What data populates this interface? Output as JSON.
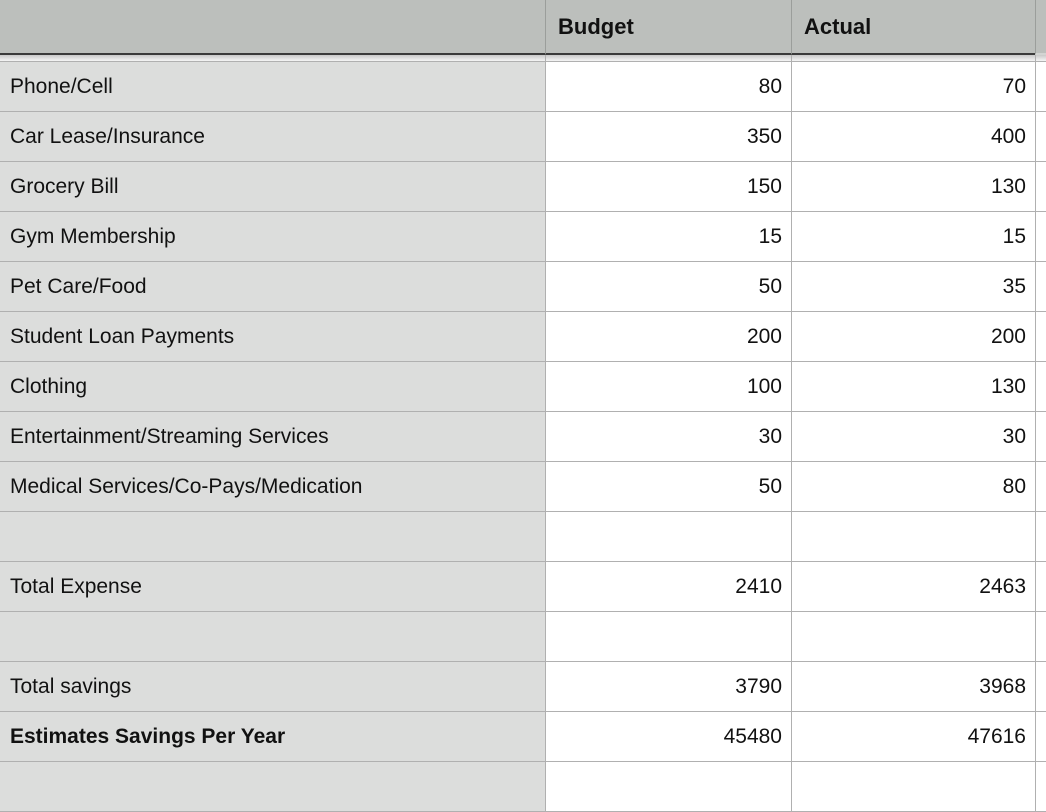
{
  "table": {
    "header": {
      "label": "",
      "budget": "Budget",
      "actual": "Actual"
    },
    "rows": [
      {
        "label": "Phone/Cell",
        "budget": "80",
        "actual": "70",
        "bold": false
      },
      {
        "label": "Car Lease/Insurance",
        "budget": "350",
        "actual": "400",
        "bold": false
      },
      {
        "label": "Grocery Bill",
        "budget": "150",
        "actual": "130",
        "bold": false
      },
      {
        "label": "Gym Membership",
        "budget": "15",
        "actual": "15",
        "bold": false
      },
      {
        "label": "Pet Care/Food",
        "budget": "50",
        "actual": "35",
        "bold": false
      },
      {
        "label": "Student Loan Payments",
        "budget": "200",
        "actual": "200",
        "bold": false
      },
      {
        "label": "Clothing",
        "budget": "100",
        "actual": "130",
        "bold": false
      },
      {
        "label": "Entertainment/Streaming Services",
        "budget": "30",
        "actual": "30",
        "bold": false
      },
      {
        "label": "Medical Services/Co-Pays/Medication",
        "budget": "50",
        "actual": "80",
        "bold": false
      },
      {
        "label": "",
        "budget": "",
        "actual": "",
        "bold": false
      },
      {
        "label": "Total Expense",
        "budget": "2410",
        "actual": "2463",
        "bold": false
      },
      {
        "label": "",
        "budget": "",
        "actual": "",
        "bold": false
      },
      {
        "label": "Total savings",
        "budget": "3790",
        "actual": "3968",
        "bold": false
      },
      {
        "label": "Estimates Savings Per Year",
        "budget": "45480",
        "actual": "47616",
        "bold": true
      },
      {
        "label": "",
        "budget": "",
        "actual": "",
        "bold": false
      }
    ],
    "colors": {
      "header_bg": "#bcbfbc",
      "header_underline": "#3a3a3a",
      "label_cell_bg": "#dcdddc",
      "cell_bg": "#ffffff",
      "gridline": "#b0b0b0",
      "header_gridline": "#9b9e9b",
      "text": "#111111"
    }
  }
}
